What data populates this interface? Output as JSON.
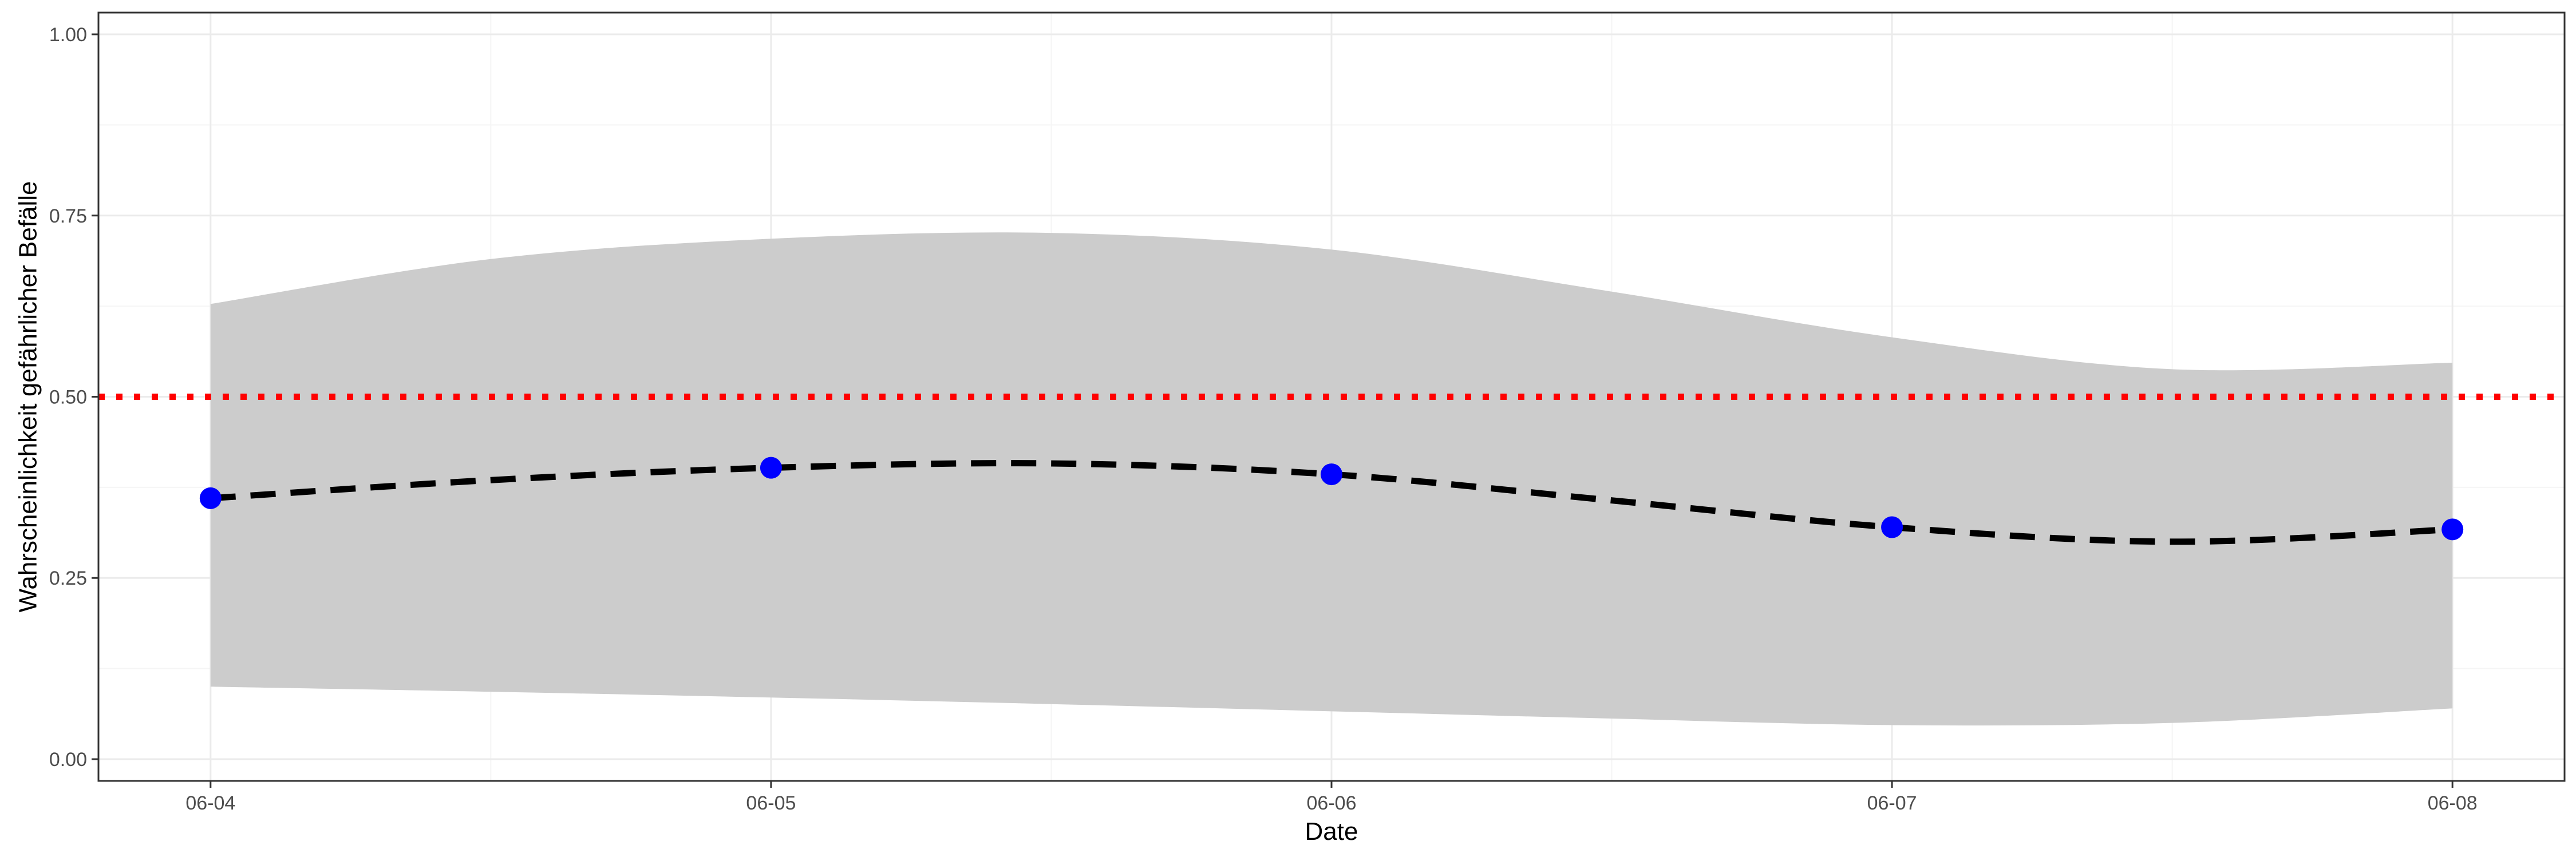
{
  "chart_data": {
    "type": "line",
    "title": "",
    "xlabel": "Date",
    "ylabel": "Wahrscheinlichkeit gefährlicher Befälle",
    "x": [
      "06-04",
      "06-05",
      "06-06",
      "06-07",
      "06-08"
    ],
    "xlim": [
      "06-03 19:12",
      "06-08 04:48"
    ],
    "ylim": [
      -0.03,
      1.03
    ],
    "yticks": [
      0.0,
      0.25,
      0.5,
      0.75,
      1.0
    ],
    "ytick_labels": [
      "0.00",
      "0.25",
      "0.50",
      "0.75",
      "1.00"
    ],
    "xtick_labels": [
      "06-04",
      "06-05",
      "06-06",
      "06-07",
      "06-08"
    ],
    "grid": true,
    "legend": "none",
    "points": {
      "x": [
        "06-04",
        "06-05",
        "06-06",
        "06-07",
        "06-08"
      ],
      "y": [
        0.36,
        0.402,
        0.393,
        0.32,
        0.317
      ],
      "color": "#0000FF"
    },
    "smooth_line": {
      "style": "dashed",
      "color": "#000000",
      "x": [
        "06-04 00:00",
        "06-04 12:00",
        "06-05 00:00",
        "06-05 12:00",
        "06-06 00:00",
        "06-06 12:00",
        "06-07 00:00",
        "06-07 12:00",
        "06-08 00:00"
      ],
      "y": [
        0.36,
        0.385,
        0.402,
        0.408,
        0.393,
        0.357,
        0.32,
        0.3,
        0.317
      ]
    },
    "confidence_band": {
      "color": "#CCCCCC",
      "x": [
        "06-04 00:00",
        "06-04 12:00",
        "06-05 00:00",
        "06-05 12:00",
        "06-06 00:00",
        "06-06 12:00",
        "06-07 00:00",
        "06-07 12:00",
        "06-08 00:00"
      ],
      "upper": [
        0.628,
        0.69,
        0.718,
        0.726,
        0.703,
        0.645,
        0.582,
        0.538,
        0.547
      ],
      "lower": [
        0.1,
        0.093,
        0.085,
        0.076,
        0.066,
        0.056,
        0.047,
        0.05,
        0.07
      ]
    },
    "reference_line": {
      "y": 0.5,
      "style": "dotted",
      "color": "#FF0000"
    },
    "colors": {
      "panel_border": "#333333",
      "grid_major": "#EBEBEB",
      "grid_minor": "#F5F5F5",
      "tick": "#333333"
    }
  }
}
